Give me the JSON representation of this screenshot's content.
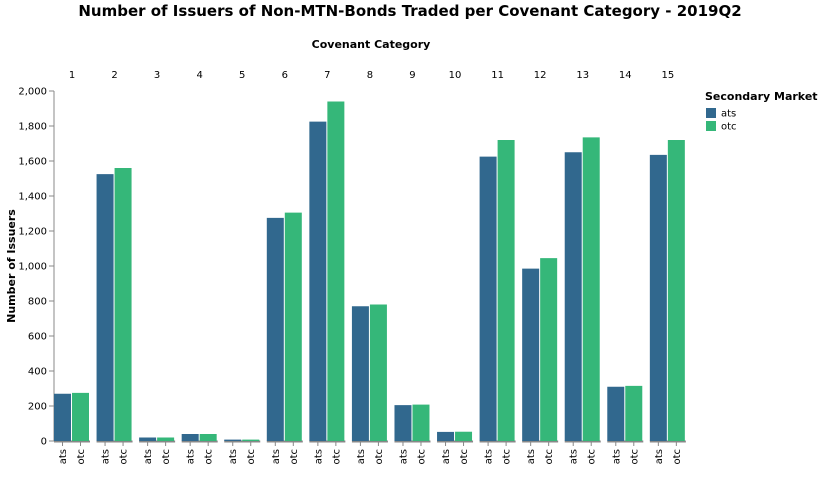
{
  "chart_data": {
    "type": "bar",
    "title": "Number of Issuers of Non-MTN-Bonds Traded per Covenant Category - 2019Q2",
    "column_header": "Covenant Category",
    "ylabel": "Number of Issuers",
    "ylim": [
      0,
      2000
    ],
    "yticks": [
      "0",
      "200",
      "400",
      "600",
      "800",
      "1,000",
      "1,200",
      "1,400",
      "1,600",
      "1,800",
      "2,000"
    ],
    "categories": [
      "1",
      "2",
      "3",
      "4",
      "5",
      "6",
      "7",
      "8",
      "9",
      "10",
      "11",
      "12",
      "13",
      "14",
      "15"
    ],
    "sub_categories": [
      "ats",
      "otc"
    ],
    "legend": {
      "title": "Secondary Market",
      "position": "top-right"
    },
    "series": [
      {
        "name": "ats",
        "color": "#31688e",
        "values": [
          270,
          1525,
          20,
          40,
          8,
          1275,
          1825,
          770,
          205,
          52,
          1625,
          985,
          1650,
          310,
          1635
        ]
      },
      {
        "name": "otc",
        "color": "#35b779",
        "values": [
          275,
          1560,
          20,
          40,
          8,
          1305,
          1940,
          780,
          208,
          53,
          1720,
          1045,
          1735,
          315,
          1720
        ]
      }
    ],
    "grid": false
  }
}
